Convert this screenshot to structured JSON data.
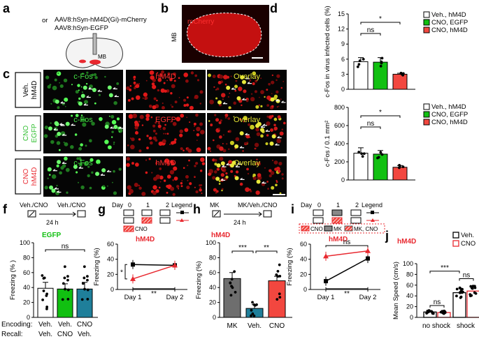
{
  "panels": {
    "a": {
      "letter": "a",
      "line1": "AAV8:hSyn-hM4D(Gi)-mCherry",
      "or": "or",
      "line2": "AAV8:hSyn-EGFP",
      "region": "MB"
    },
    "b": {
      "letter": "b",
      "stain": "mCherry",
      "region": "MB"
    },
    "c": {
      "letter": "c",
      "rows": [
        {
          "group": [
            "Veh.",
            "hM4D"
          ],
          "group_color": "#000000",
          "cols": [
            "c-Fos",
            "hM4D",
            "Overlay"
          ]
        },
        {
          "group": [
            "CNO",
            "EGFP"
          ],
          "group_color": "#2fbf2f",
          "cols": [
            "c-Fos",
            "EGFP",
            "Overlay"
          ]
        },
        {
          "group": [
            "CNO",
            "hM4D"
          ],
          "group_color": "#e8282f",
          "cols": [
            "c-Fos",
            "hM4D",
            "Overlay"
          ]
        }
      ]
    },
    "f": {
      "letter": "f",
      "schedule": [
        "Veh./CNO",
        "24 h",
        "Veh./CNO"
      ],
      "title": "EGFP",
      "ns": "ns",
      "row_labels": [
        "Encoding:",
        "Recall:"
      ]
    },
    "g": {
      "letter": "g",
      "day_label": "Day",
      "days": [
        "0",
        "1",
        "2"
      ],
      "legend_label": "Legend",
      "cno_label": "CNO",
      "title": "hM4D",
      "sig": [
        "*",
        "**"
      ]
    },
    "h": {
      "letter": "h",
      "schedule": [
        "MK",
        "24 h",
        "MK/Veh./CNO"
      ],
      "title": "hM4D",
      "sig": [
        "***",
        "**"
      ]
    },
    "i": {
      "letter": "i",
      "day_label": "Day",
      "days": [
        "0",
        "1",
        "2"
      ],
      "legend_label": "Legend",
      "box_labels": [
        "CNO",
        "MK",
        "MK, CNO"
      ],
      "title": "hM4D",
      "sig": [
        "ns",
        "**"
      ]
    },
    "j": {
      "letter": "j",
      "title": "hM4D",
      "legend": [
        "Veh.",
        "CNO"
      ],
      "sig": [
        "ns",
        "ns",
        "***"
      ]
    }
  },
  "colors": {
    "veh": "#ffffff",
    "egfp": "#11c011",
    "cno": "#f2473f",
    "hm4d_red": "#e8282f",
    "teal": "#1f7f9a",
    "gray": "#6e6e6e"
  },
  "chart_data": [
    {
      "id": "d",
      "type": "bar",
      "title": "",
      "ylabel": "c-Fos in virus infected cells (%)",
      "ylim": [
        0,
        15
      ],
      "yticks": [
        0,
        3,
        6,
        9,
        12,
        15
      ],
      "categories": [
        "Veh., hM4D",
        "CNO, EGFP",
        "CNO, hM4D"
      ],
      "values": [
        5.5,
        5.4,
        3.0
      ],
      "errors": [
        0.8,
        0.9,
        0.2
      ],
      "legend": [
        "Veh., hM4D",
        "CNO, EGFP",
        "CNO, hM4D"
      ],
      "annotations": [
        "ns",
        "*"
      ]
    },
    {
      "id": "e",
      "type": "bar",
      "ylabel": "c-Fos / 0.1 mm²",
      "ylim": [
        0,
        800
      ],
      "yticks": [
        0,
        200,
        400,
        600,
        800
      ],
      "categories": [
        "Veh., hM4D",
        "CNO, EGFP",
        "CNO, hM4D"
      ],
      "values": [
        295,
        285,
        140
      ],
      "errors": [
        60,
        40,
        20
      ],
      "legend": [
        "Veh., hM4D",
        "CNO, EGFP",
        "CNO, hM4D"
      ],
      "annotations": [
        "ns",
        "*"
      ]
    },
    {
      "id": "f",
      "type": "bar",
      "ylabel": "Freezing (% )",
      "ylim": [
        0,
        100
      ],
      "yticks": [
        0,
        20,
        40,
        60,
        80,
        100
      ],
      "categories": [
        "Veh.",
        "Veh.",
        "CNO"
      ],
      "recall": [
        "Veh.",
        "CNO",
        "Veh."
      ],
      "values": [
        39,
        38,
        38
      ],
      "errors": [
        8,
        7,
        9
      ],
      "annotations": [
        "ns"
      ]
    },
    {
      "id": "g",
      "type": "line",
      "ylabel": "Freezing (%)",
      "ylim": [
        0,
        60
      ],
      "yticks": [
        0,
        20,
        40,
        60
      ],
      "x": [
        "Day 1",
        "Day 2"
      ],
      "series": [
        {
          "name": "Veh.",
          "values": [
            33,
            32
          ]
        },
        {
          "name": "CNO",
          "values": [
            14,
            32
          ]
        }
      ]
    },
    {
      "id": "h",
      "type": "bar",
      "ylabel": "Freezing (%)",
      "ylim": [
        0,
        100
      ],
      "yticks": [
        0,
        20,
        40,
        60,
        80,
        100
      ],
      "categories": [
        "MK",
        "Veh.",
        "CNO"
      ],
      "values": [
        52,
        12,
        49
      ],
      "errors": [
        8,
        5,
        6
      ],
      "annotations": [
        "***",
        "**"
      ]
    },
    {
      "id": "i",
      "type": "line",
      "ylabel": "Freezing (%)",
      "ylim": [
        0,
        60
      ],
      "yticks": [
        0,
        20,
        40,
        60
      ],
      "x": [
        "Day 1",
        "Day 2"
      ],
      "series": [
        {
          "name": "MK",
          "values": [
            11,
            41
          ]
        },
        {
          "name": "MK, CNO",
          "values": [
            44,
            51
          ]
        }
      ]
    },
    {
      "id": "j",
      "type": "bar",
      "ylabel": "Mean Speed (cm/s)",
      "ylim": [
        0,
        100
      ],
      "yticks": [
        0,
        20,
        40,
        60,
        80,
        100
      ],
      "categories": [
        "no shock",
        "shock"
      ],
      "series": [
        {
          "name": "Veh.",
          "values": [
            10,
            46
          ]
        },
        {
          "name": "CNO",
          "values": [
            9,
            49
          ]
        }
      ],
      "annotations": [
        "ns",
        "ns",
        "***"
      ]
    }
  ]
}
